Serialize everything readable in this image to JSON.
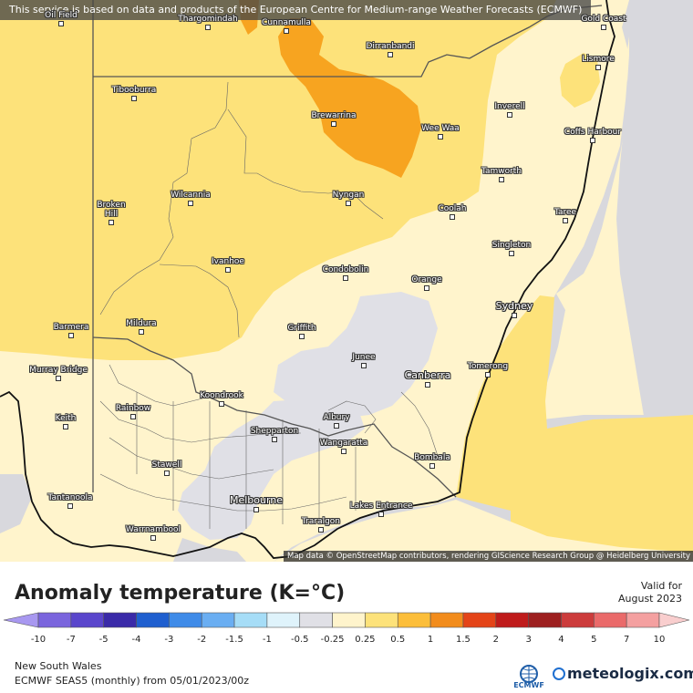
{
  "banner": "This service is based on data and products of the European Centre for Medium-range Weather Forecasts (ECMWF)",
  "attribution": "Map data © OpenStreetMap contributors, rendering GIScience Research Group @ Heidelberg University",
  "legend": {
    "title": "Anomaly temperature (K=°C)",
    "valid_label": "Valid for",
    "valid_date": "August 2023",
    "ticks": [
      "-10",
      "-7",
      "-5",
      "-4",
      "-3",
      "-2",
      "-1.5",
      "-1",
      "-0.5",
      "-0.25",
      "0.25",
      "0.5",
      "1",
      "1.5",
      "2",
      "3",
      "4",
      "5",
      "7",
      "10"
    ],
    "colors": [
      "#a898f0",
      "#7a65dd",
      "#5a46cc",
      "#3a2aa8",
      "#1f5fcf",
      "#3f8be8",
      "#6aaef2",
      "#a6ddf7",
      "#dff3fb",
      "#e0e0e6",
      "#fff4cc",
      "#fde27a",
      "#fcbe3a",
      "#f28c1c",
      "#e44418",
      "#bf1b1b",
      "#9d2020",
      "#cc3c3c",
      "#ea6a6a",
      "#f4a0a0",
      "#f9cece"
    ]
  },
  "region": "New South Wales",
  "model_line": "ECMWF SEAS5 (monthly) from 05/01/2023/00z",
  "ecmwf_logo": "ECMWF",
  "brand": "meteologix.com",
  "cities": [
    {
      "id": "oil-field",
      "name": "Oil Field"
    },
    {
      "id": "thargomindah",
      "name": "Thargomindah"
    },
    {
      "id": "cunnamulla",
      "name": "Cunnamulla"
    },
    {
      "id": "dirranbandi",
      "name": "Dirranbandi"
    },
    {
      "id": "gold-coast",
      "name": "Gold Coast"
    },
    {
      "id": "lismore",
      "name": "Lismore"
    },
    {
      "id": "tibooburra",
      "name": "Tibooburra"
    },
    {
      "id": "brewarrina",
      "name": "Brewarrina"
    },
    {
      "id": "inverell",
      "name": "Inverell"
    },
    {
      "id": "wee-waa",
      "name": "Wee Waa"
    },
    {
      "id": "coffs-harbour",
      "name": "Coffs Harbour"
    },
    {
      "id": "tamworth",
      "name": "Tamworth"
    },
    {
      "id": "wilcannia",
      "name": "Wilcannia"
    },
    {
      "id": "nyngan",
      "name": "Nyngan"
    },
    {
      "id": "broken-hill",
      "name": "Broken\nHill"
    },
    {
      "id": "coolah",
      "name": "Coolah"
    },
    {
      "id": "taree",
      "name": "Taree"
    },
    {
      "id": "singleton",
      "name": "Singleton"
    },
    {
      "id": "ivanhoe",
      "name": "Ivanhoe"
    },
    {
      "id": "condobolin",
      "name": "Condobolin"
    },
    {
      "id": "orange",
      "name": "Orange"
    },
    {
      "id": "sydney",
      "name": "Sydney"
    },
    {
      "id": "barmera",
      "name": "Barmera"
    },
    {
      "id": "mildura",
      "name": "Mildura"
    },
    {
      "id": "griffith",
      "name": "Griffith"
    },
    {
      "id": "junee",
      "name": "Junee"
    },
    {
      "id": "murray-bridge",
      "name": "Murray Bridge"
    },
    {
      "id": "tomerong",
      "name": "Tomerong"
    },
    {
      "id": "canberra",
      "name": "Canberra"
    },
    {
      "id": "koondrook",
      "name": "Koondrook"
    },
    {
      "id": "rainbow",
      "name": "Rainbow"
    },
    {
      "id": "albury",
      "name": "Albury"
    },
    {
      "id": "keith",
      "name": "Keith"
    },
    {
      "id": "shepparton",
      "name": "Shepparton"
    },
    {
      "id": "wangaratta",
      "name": "Wangaratta"
    },
    {
      "id": "bombala",
      "name": "Bombala"
    },
    {
      "id": "stawell",
      "name": "Stawell"
    },
    {
      "id": "tantanoola",
      "name": "Tantanoola"
    },
    {
      "id": "melbourne",
      "name": "Melbourne"
    },
    {
      "id": "lakes-entrance",
      "name": "Lakes Entrance"
    },
    {
      "id": "warrnambool",
      "name": "Warrnambool"
    },
    {
      "id": "traralgon",
      "name": "Traralgon"
    }
  ]
}
